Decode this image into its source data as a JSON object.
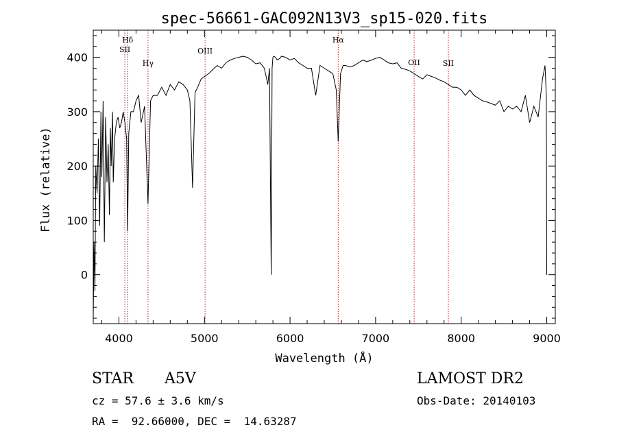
{
  "chart_data": {
    "type": "line",
    "title": "spec-56661-GAC092N13V3_sp15-020.fits",
    "xlabel": "Wavelength (Å)",
    "ylabel": "Flux (relative)",
    "xlim": [
      3700,
      9100
    ],
    "ylim": [
      -90,
      450
    ],
    "xticks": [
      4000,
      5000,
      6000,
      7000,
      8000,
      9000
    ],
    "yticks": [
      0,
      100,
      200,
      300,
      400
    ],
    "grid": false,
    "line_color": "#000000",
    "marker_color": "#b22222",
    "lines": [
      {
        "label": "Hδ",
        "x": 4102
      },
      {
        "label": "SII",
        "x": 4069
      },
      {
        "label": "Hγ",
        "x": 4340
      },
      {
        "label": "OIII",
        "x": 5007
      },
      {
        "label": "Hα",
        "x": 6563
      },
      {
        "label": "OII",
        "x": 7450
      },
      {
        "label": "SII",
        "x": 7850
      }
    ],
    "series": [
      {
        "x": [
          3700,
          3710,
          3720,
          3730,
          3745,
          3760,
          3775,
          3790,
          3800,
          3815,
          3830,
          3845,
          3860,
          3875,
          3889,
          3900,
          3910,
          3925,
          3934,
          3950,
          3970,
          3990,
          4010,
          4030,
          4050,
          4070,
          4090,
          4102,
          4115,
          4140,
          4170,
          4200,
          4230,
          4260,
          4300,
          4340,
          4370,
          4400,
          4450,
          4500,
          4550,
          4600,
          4650,
          4700,
          4750,
          4800,
          4830,
          4861,
          4890,
          4920,
          4960,
          5000,
          5050,
          5100,
          5150,
          5200,
          5250,
          5300,
          5350,
          5400,
          5450,
          5500,
          5550,
          5600,
          5650,
          5700,
          5740,
          5760,
          5780,
          5790,
          5800,
          5810,
          5830,
          5850,
          5880,
          5900,
          5950,
          6000,
          6050,
          6100,
          6150,
          6200,
          6250,
          6300,
          6350,
          6400,
          6450,
          6500,
          6540,
          6563,
          6590,
          6620,
          6650,
          6700,
          6750,
          6800,
          6850,
          6900,
          6950,
          7000,
          7050,
          7100,
          7150,
          7200,
          7250,
          7300,
          7350,
          7400,
          7450,
          7500,
          7550,
          7600,
          7650,
          7700,
          7750,
          7800,
          7850,
          7900,
          7950,
          8000,
          8050,
          8100,
          8150,
          8200,
          8250,
          8300,
          8350,
          8400,
          8450,
          8500,
          8550,
          8600,
          8650,
          8700,
          8750,
          8800,
          8850,
          8900,
          8950,
          8980,
          8995,
          9000
        ],
        "y": [
          -80,
          60,
          -30,
          200,
          150,
          250,
          90,
          300,
          180,
          320,
          60,
          290,
          170,
          240,
          110,
          270,
          200,
          300,
          170,
          250,
          280,
          290,
          270,
          280,
          300,
          280,
          250,
          80,
          260,
          300,
          300,
          320,
          330,
          280,
          310,
          130,
          320,
          330,
          330,
          345,
          330,
          350,
          340,
          355,
          350,
          340,
          320,
          160,
          335,
          345,
          360,
          365,
          370,
          378,
          385,
          380,
          390,
          395,
          398,
          400,
          402,
          400,
          395,
          388,
          390,
          380,
          350,
          380,
          0,
          380,
          400,
          402,
          400,
          395,
          398,
          402,
          400,
          395,
          398,
          390,
          385,
          380,
          380,
          330,
          385,
          380,
          375,
          370,
          340,
          245,
          370,
          385,
          385,
          382,
          385,
          390,
          395,
          392,
          395,
          398,
          400,
          395,
          390,
          388,
          390,
          380,
          378,
          375,
          370,
          365,
          360,
          368,
          365,
          362,
          358,
          355,
          350,
          345,
          345,
          340,
          330,
          340,
          330,
          325,
          320,
          318,
          315,
          312,
          320,
          300,
          310,
          305,
          310,
          300,
          330,
          280,
          310,
          290,
          360,
          385,
          330,
          0
        ]
      }
    ]
  },
  "info": {
    "object_type": "STAR",
    "subclass": "A5V",
    "survey": "LAMOST DR2",
    "cz": "cz = 57.6 ± 3.6 km/s",
    "obs_date": "Obs-Date: 20140103",
    "radec": "RA =  92.66000, DEC =  14.63287"
  }
}
